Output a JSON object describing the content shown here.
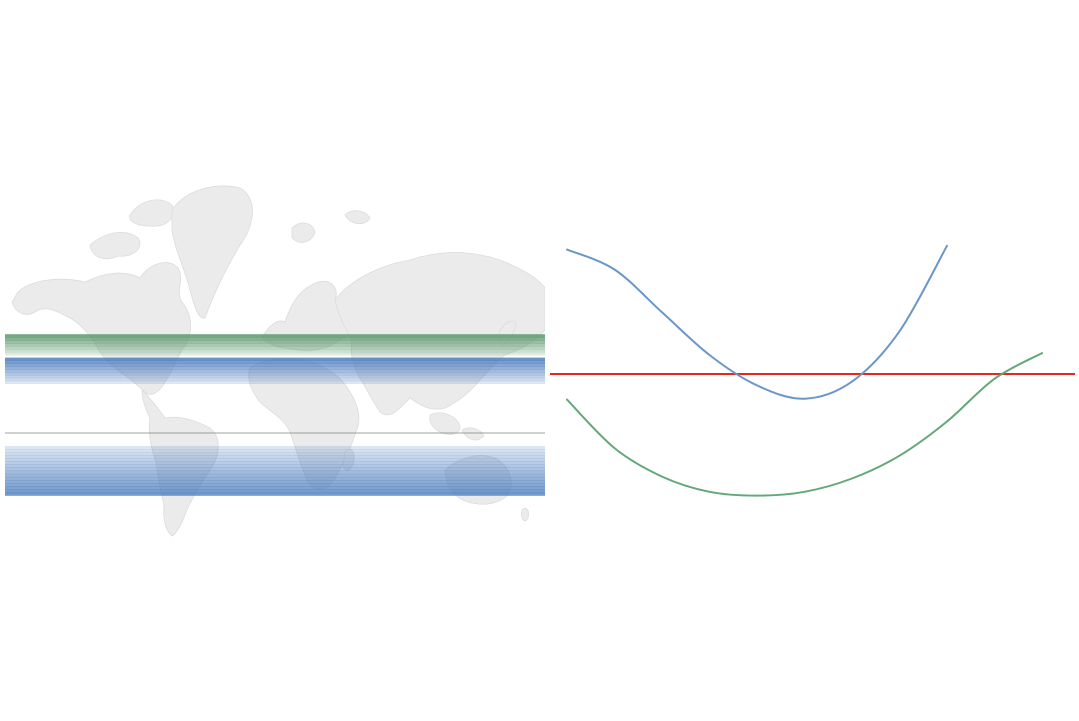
{
  "chart_data": [
    {
      "type": "map-bands",
      "description_hidden": false,
      "basemap": "world",
      "bands": [
        {
          "series": "green",
          "color": "#5a9a6e",
          "gradient": "dark-top",
          "lat_range": [
            30,
            38
          ]
        },
        {
          "series": "blue-upper",
          "color": "#4f7fbf",
          "gradient": "dark-top",
          "lat_range": [
            19,
            29
          ]
        },
        {
          "series": "blue-lower",
          "color": "#4f7fbf",
          "gradient": "dark-bottom",
          "lat_range": [
            -24,
            -5
          ]
        }
      ],
      "reference_line": {
        "lat": 0,
        "color": "#808080"
      }
    },
    {
      "type": "line",
      "x": [
        0,
        1,
        2,
        3,
        4,
        5,
        6,
        7,
        8,
        9,
        10
      ],
      "series": [
        {
          "color": "#6b96c8",
          "values": [
            1.31,
            1.1,
            0.65,
            0.2,
            -0.12,
            -0.26,
            -0.08,
            0.45,
            1.35,
            null,
            null
          ]
        },
        {
          "color": "#63a87a",
          "values": [
            -0.27,
            -0.78,
            -1.08,
            -1.24,
            -1.28,
            -1.24,
            -1.1,
            -0.86,
            -0.5,
            -0.05,
            0.22
          ]
        }
      ],
      "reference_line": {
        "y": 0,
        "color": "#e8251f"
      },
      "ylim": [
        -1.6,
        1.6
      ],
      "grid": false,
      "axes_visible": false
    }
  ]
}
